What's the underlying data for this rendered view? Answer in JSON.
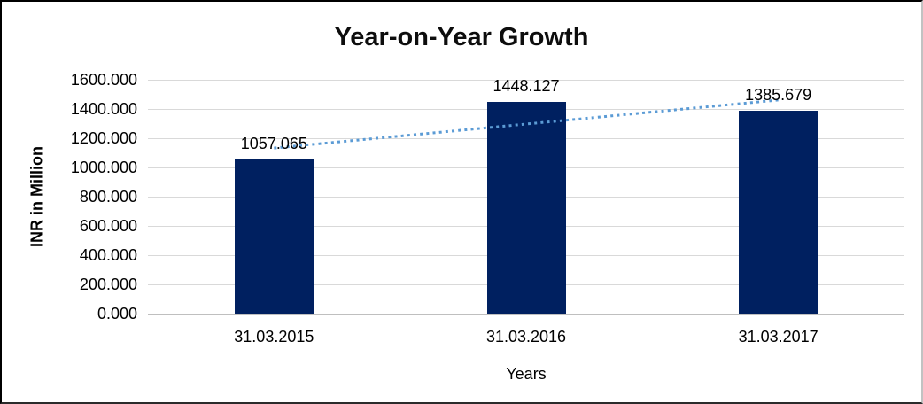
{
  "chart_data": {
    "type": "bar",
    "title": "Year-on-Year Growth",
    "categories": [
      "31.03.2015",
      "31.03.2016",
      "31.03.2017"
    ],
    "values": [
      1057.065,
      1448.127,
      1385.679
    ],
    "data_labels": [
      "1057.065",
      "1448.127",
      "1385.679"
    ],
    "xlabel": "Years",
    "ylabel": "INR in Million",
    "ylim": [
      0,
      1600
    ],
    "ytick_step": 200,
    "ytick_labels": [
      "1600.000",
      "1400.000",
      "1200.000",
      "1000.000",
      "800.000",
      "600.000",
      "400.000",
      "200.000",
      "0.000"
    ],
    "grid": true,
    "legend": "none",
    "colors": {
      "bar": "#002060",
      "trendline": "#5b9bd5",
      "gridline": "#d9d9d9",
      "axis_line": "#bfbfbf",
      "text": "#000000"
    },
    "trendline": {
      "type": "linear",
      "style": "dotted",
      "start_value": 1132.7,
      "end_value": 1461.3
    }
  }
}
